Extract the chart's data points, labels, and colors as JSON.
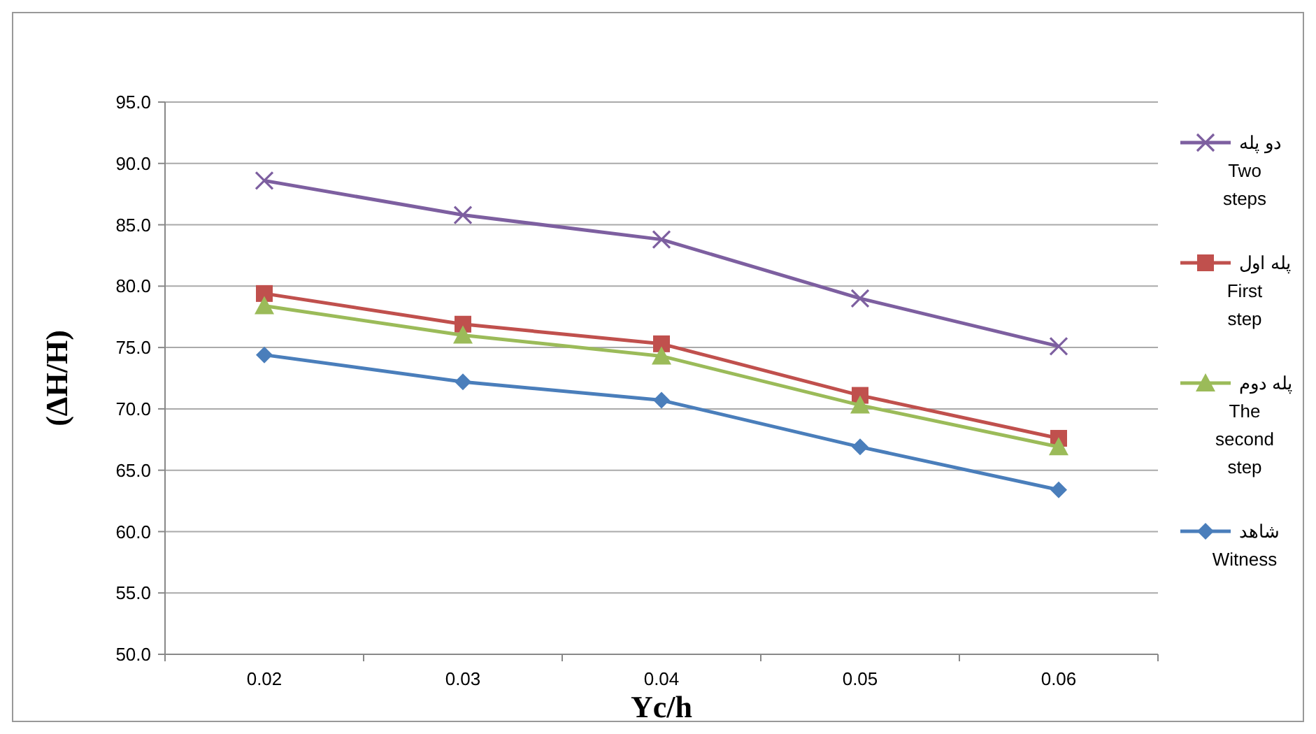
{
  "chart_data": {
    "type": "line",
    "xlabel": "Yc/h",
    "ylabel": "(ΔH/H)",
    "categories": [
      "0.02",
      "0.03",
      "0.04",
      "0.05",
      "0.06"
    ],
    "ylim": [
      50,
      95
    ],
    "yticks": [
      {
        "value": 50,
        "label": "50.0"
      },
      {
        "value": 55,
        "label": "55.0"
      },
      {
        "value": 60,
        "label": "60.0"
      },
      {
        "value": 65,
        "label": "65.0"
      },
      {
        "value": 70,
        "label": "70.0"
      },
      {
        "value": 75,
        "label": "75.0"
      },
      {
        "value": 80,
        "label": "80.0"
      },
      {
        "value": 85,
        "label": "85.0"
      },
      {
        "value": 90,
        "label": "90.0"
      },
      {
        "value": 95,
        "label": "95.0"
      }
    ],
    "grid": "y",
    "legend": "right",
    "series": [
      {
        "name": "دو پله\nTwo\nsteps",
        "color": "#7d5fa0",
        "marker": "cross",
        "values": [
          88.6,
          85.8,
          83.8,
          79.0,
          75.1
        ]
      },
      {
        "name": "پله اول\nFirst\nstep",
        "color": "#c0504d",
        "marker": "square",
        "values": [
          79.4,
          76.9,
          75.3,
          71.1,
          67.6
        ]
      },
      {
        "name": "پله دوم\nThe\nsecond\nstep",
        "color": "#9bbb59",
        "marker": "triangle",
        "values": [
          78.4,
          76.0,
          74.3,
          70.3,
          66.9
        ]
      },
      {
        "name": "شاهد\nWitness",
        "color": "#4a7ebb",
        "marker": "diamond",
        "values": [
          74.4,
          72.2,
          70.7,
          66.9,
          63.4
        ]
      }
    ]
  }
}
